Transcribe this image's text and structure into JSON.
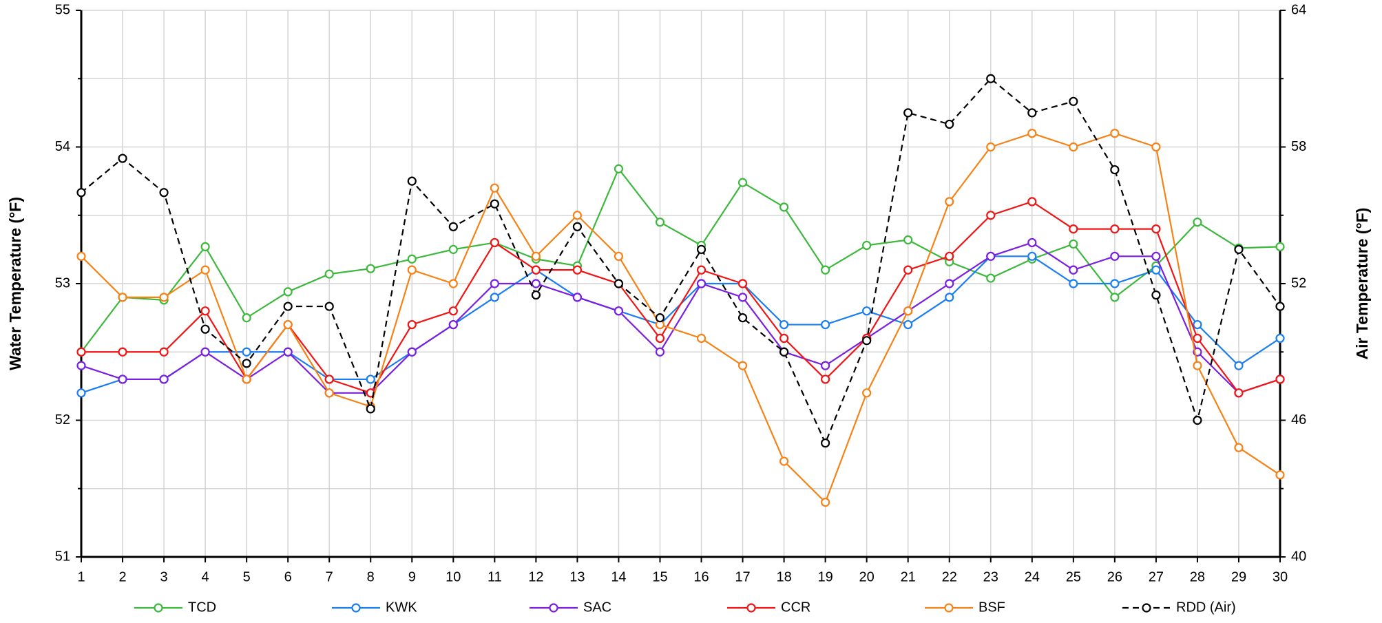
{
  "chart_data": {
    "type": "line",
    "y_label": "Water Temperature (°F)",
    "y2_label": "Air Temperature (°F)",
    "x": [
      1,
      2,
      3,
      4,
      5,
      6,
      7,
      8,
      9,
      10,
      11,
      12,
      13,
      14,
      15,
      16,
      17,
      18,
      19,
      20,
      21,
      22,
      23,
      24,
      25,
      26,
      27,
      28,
      29,
      30
    ],
    "xlim": [
      1,
      30
    ],
    "xticks": [
      1,
      2,
      3,
      4,
      5,
      6,
      7,
      8,
      9,
      10,
      11,
      12,
      13,
      14,
      15,
      16,
      17,
      18,
      19,
      20,
      21,
      22,
      23,
      24,
      25,
      26,
      27,
      28,
      29,
      30
    ],
    "ylim": [
      51,
      55
    ],
    "yticks": [
      51,
      52,
      53,
      54,
      55
    ],
    "y_minor_ticks": [
      51.5,
      52.5,
      53.5,
      54.5
    ],
    "y2lim": [
      40,
      64
    ],
    "y2ticks": [
      40,
      46,
      52,
      58,
      64
    ],
    "y2_minor_ticks": [
      43,
      49,
      55,
      61
    ],
    "grid": true,
    "legend": "bottom",
    "series": [
      {
        "name": "TCD",
        "color": "#3cb83c",
        "values": [
          52.5,
          52.9,
          52.88,
          53.27,
          52.75,
          52.94,
          53.07,
          53.11,
          53.18,
          53.25,
          53.3,
          53.18,
          53.13,
          53.84,
          53.45,
          53.28,
          53.74,
          53.56,
          53.1,
          53.28,
          53.32,
          53.16,
          53.04,
          53.18,
          53.29,
          52.9,
          53.13,
          53.45,
          53.26,
          53.27
        ]
      },
      {
        "name": "KWK",
        "color": "#1a7ef0",
        "values": [
          52.2,
          52.3,
          52.3,
          52.5,
          52.5,
          52.5,
          52.3,
          52.3,
          52.5,
          52.7,
          52.9,
          53.1,
          52.9,
          52.8,
          52.7,
          53.0,
          53.0,
          52.7,
          52.7,
          52.8,
          52.7,
          52.9,
          53.2,
          53.2,
          53.0,
          53.0,
          53.1,
          52.7,
          52.4,
          52.6
        ]
      },
      {
        "name": "SAC",
        "color": "#7a1fe0",
        "values": [
          52.4,
          52.3,
          52.3,
          52.5,
          52.3,
          52.5,
          52.2,
          52.2,
          52.5,
          52.7,
          53.0,
          53.0,
          52.9,
          52.8,
          52.5,
          53.0,
          52.9,
          52.5,
          52.4,
          52.6,
          52.8,
          53.0,
          53.2,
          53.3,
          53.1,
          53.2,
          53.2,
          52.5,
          52.2,
          52.3
        ]
      },
      {
        "name": "CCR",
        "color": "#f01414",
        "values": [
          52.5,
          52.5,
          52.5,
          52.8,
          52.3,
          52.7,
          52.3,
          52.2,
          52.7,
          52.8,
          53.3,
          53.1,
          53.1,
          53.0,
          52.6,
          53.1,
          53.0,
          52.6,
          52.3,
          52.6,
          53.1,
          53.2,
          53.5,
          53.6,
          53.4,
          53.4,
          53.4,
          52.6,
          52.2,
          52.3
        ]
      },
      {
        "name": "BSF",
        "color": "#f58216",
        "values": [
          53.2,
          52.9,
          52.9,
          53.1,
          52.3,
          52.7,
          52.2,
          52.1,
          53.1,
          53.0,
          53.7,
          53.2,
          53.5,
          53.2,
          52.7,
          52.6,
          52.4,
          51.7,
          51.4,
          52.2,
          52.8,
          53.6,
          54.0,
          54.1,
          54.0,
          54.1,
          54.0,
          52.4,
          51.8,
          51.6
        ]
      },
      {
        "name": "RDD (Air)",
        "color": "#000000",
        "dash": true,
        "axis": "y2",
        "values": [
          56.0,
          57.5,
          56.0,
          50.0,
          48.5,
          51.0,
          51.0,
          46.5,
          56.5,
          54.5,
          55.5,
          51.5,
          54.5,
          52.0,
          50.5,
          53.5,
          50.5,
          49.0,
          45.0,
          49.5,
          59.5,
          59.0,
          61.0,
          59.5,
          60.0,
          57.0,
          51.5,
          46.0,
          53.5,
          51.0
        ]
      }
    ]
  }
}
